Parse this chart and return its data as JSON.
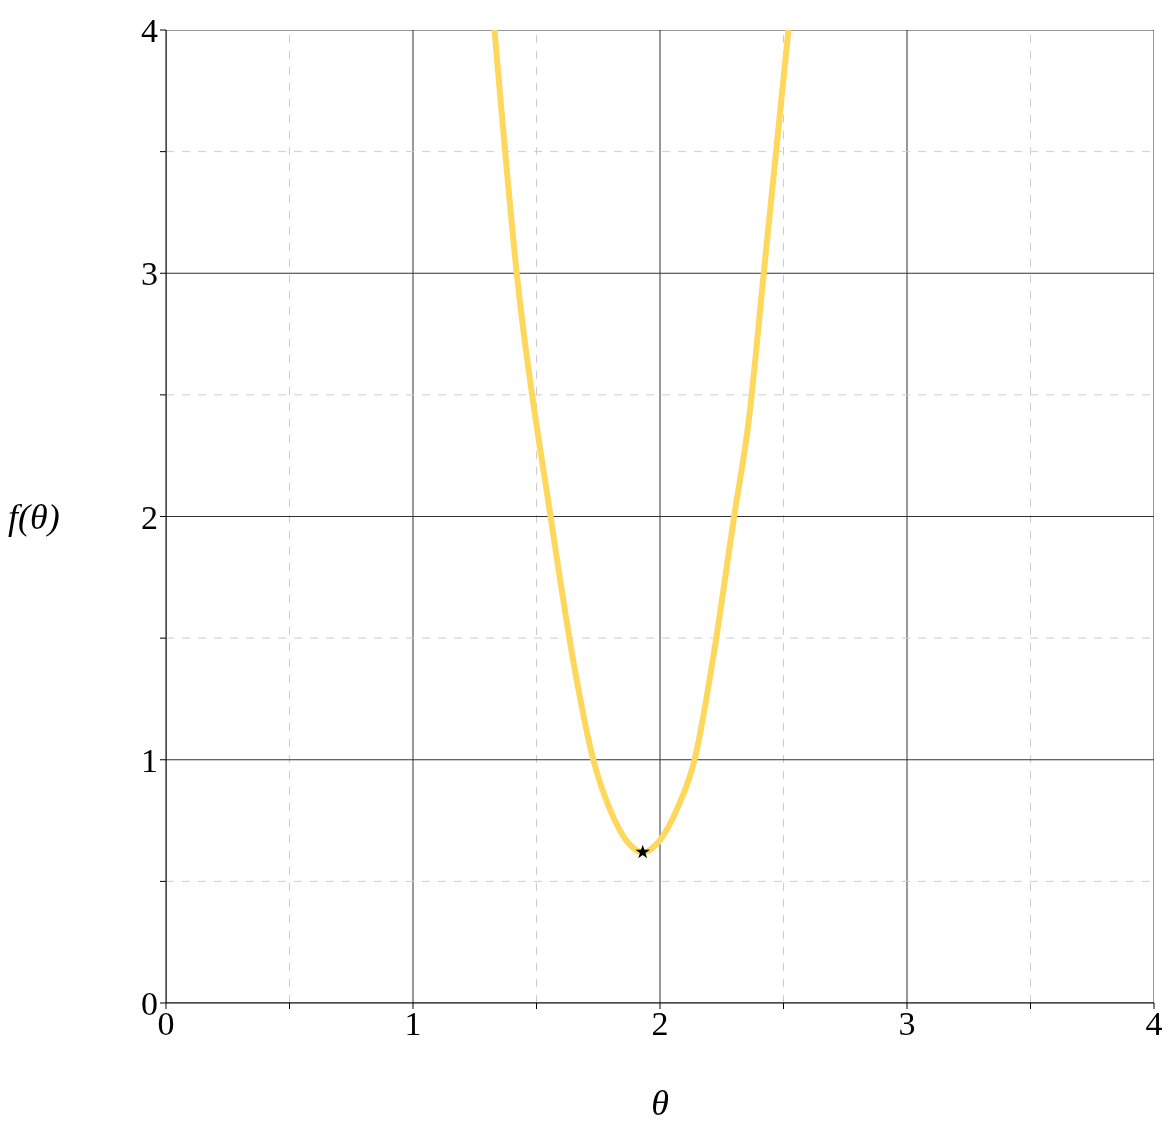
{
  "chart_data": {
    "type": "line",
    "xlabel": "θ",
    "ylabel": "f(θ)",
    "xlim": [
      0,
      4
    ],
    "ylim": [
      0,
      4
    ],
    "xticks": [
      0,
      {
        "value": 0.5,
        "label": null
      },
      1,
      {
        "value": 1.5,
        "label": null
      },
      2,
      {
        "value": 2.5,
        "label": null
      },
      3,
      {
        "value": 3.5,
        "label": null
      },
      4
    ],
    "yticks": [
      0,
      {
        "value": 0.5,
        "label": null
      },
      1,
      {
        "value": 1.5,
        "label": null
      },
      2,
      {
        "value": 2.5,
        "label": null
      },
      3,
      {
        "value": 3.5,
        "label": null
      },
      4
    ],
    "grid": true,
    "series": [
      {
        "type": "line",
        "color": "#fdd85d",
        "marker": "none",
        "line_style": "solid",
        "x": [
          1.33,
          1.42,
          1.557,
          1.65,
          1.73,
          1.8,
          1.87,
          1.93,
          2.0,
          2.07,
          2.14,
          2.22,
          2.3,
          2.36,
          2.42,
          2.52
        ],
        "values": [
          4,
          3,
          2,
          1.4,
          1,
          0.79,
          0.66,
          0.62,
          0.67,
          0.8,
          1,
          1.45,
          2,
          2.4,
          3,
          4
        ]
      },
      {
        "type": "scatter",
        "color": "#000000",
        "marker": "star",
        "x": [
          1.93
        ],
        "values": [
          0.62
        ]
      }
    ]
  }
}
